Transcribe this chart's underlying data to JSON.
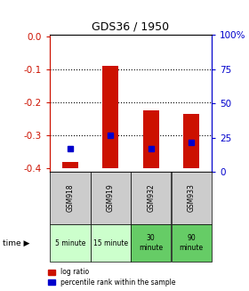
{
  "title": "GDS36 / 1950",
  "samples": [
    "GSM918",
    "GSM919",
    "GSM932",
    "GSM933"
  ],
  "times": [
    "5 minute",
    "15 minute",
    "30\nminute",
    "90\nminute"
  ],
  "time_colors": [
    "#ccffcc",
    "#ccffcc",
    "#66cc66",
    "#66cc66"
  ],
  "log_ratios": [
    -0.38,
    -0.09,
    -0.225,
    -0.235
  ],
  "percentile_ranks": [
    0.15,
    0.25,
    0.15,
    0.2
  ],
  "bar_bottom": -0.4,
  "ylim_left": [
    -0.41,
    0.005
  ],
  "ylim_right": [
    0,
    100
  ],
  "left_ticks": [
    0.0,
    -0.1,
    -0.2,
    -0.3,
    -0.4
  ],
  "right_ticks": [
    100,
    75,
    50,
    25,
    0
  ],
  "bar_color": "#cc1100",
  "blue_color": "#0000cc",
  "bg_color": "#ffffff",
  "label_bg": "#cccccc",
  "legend_red": "log ratio",
  "legend_blue": "percentile rank within the sample"
}
